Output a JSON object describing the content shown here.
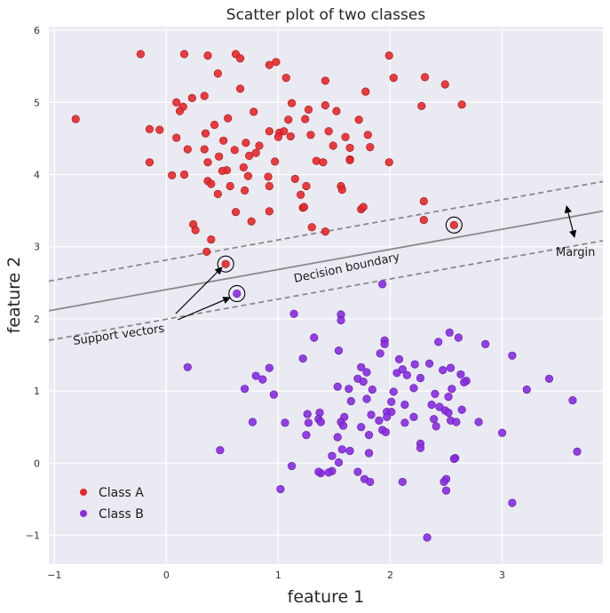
{
  "chart_data": {
    "type": "scatter",
    "title": "Scatter plot of two classes",
    "xlabel": "feature 1",
    "ylabel": "feature 2",
    "xlim": [
      -1.05,
      3.9
    ],
    "ylim": [
      -1.4,
      6.05
    ],
    "xticks": [
      -1,
      0,
      1,
      2,
      3
    ],
    "xtick_labels": [
      "−1",
      "0",
      "1",
      "2",
      "3"
    ],
    "yticks": [
      -1,
      0,
      1,
      2,
      3,
      4,
      5,
      6
    ],
    "ytick_labels": [
      "−1",
      "0",
      "1",
      "2",
      "3",
      "4",
      "5",
      "6"
    ],
    "grid": true,
    "background": "#eaeaf2",
    "legend_position": "bottom-left",
    "series": [
      {
        "name": "Class A",
        "color": "#e8282b",
        "points": [
          [
            -0.23,
            5.67
          ],
          [
            0.16,
            5.67
          ],
          [
            0.37,
            5.65
          ],
          [
            0.62,
            5.67
          ],
          [
            0.66,
            5.61
          ],
          [
            0.92,
            5.52
          ],
          [
            0.98,
            5.56
          ],
          [
            1.99,
            5.65
          ],
          [
            0.46,
            5.4
          ],
          [
            1.07,
            5.34
          ],
          [
            1.42,
            5.3
          ],
          [
            2.03,
            5.34
          ],
          [
            2.31,
            5.35
          ],
          [
            2.49,
            5.25
          ],
          [
            0.66,
            5.19
          ],
          [
            1.78,
            5.15
          ],
          [
            0.34,
            5.09
          ],
          [
            0.23,
            5.06
          ],
          [
            0.09,
            5.0
          ],
          [
            0.15,
            4.94
          ],
          [
            0.12,
            4.88
          ],
          [
            0.78,
            4.87
          ],
          [
            1.12,
            4.99
          ],
          [
            1.27,
            4.9
          ],
          [
            1.42,
            4.96
          ],
          [
            1.52,
            4.88
          ],
          [
            2.28,
            4.95
          ],
          [
            2.64,
            4.97
          ],
          [
            -0.81,
            4.77
          ],
          [
            0.55,
            4.78
          ],
          [
            1.09,
            4.76
          ],
          [
            1.24,
            4.77
          ],
          [
            1.72,
            4.76
          ],
          [
            0.43,
            4.69
          ],
          [
            -0.15,
            4.63
          ],
          [
            -0.06,
            4.62
          ],
          [
            0.35,
            4.57
          ],
          [
            0.92,
            4.6
          ],
          [
            1.01,
            4.58
          ],
          [
            1.05,
            4.6
          ],
          [
            1.45,
            4.6
          ],
          [
            1.6,
            4.52
          ],
          [
            1.8,
            4.55
          ],
          [
            0.09,
            4.51
          ],
          [
            0.34,
            4.35
          ],
          [
            0.51,
            4.47
          ],
          [
            0.71,
            4.44
          ],
          [
            0.83,
            4.4
          ],
          [
            1.0,
            4.52
          ],
          [
            1.11,
            4.53
          ],
          [
            1.29,
            4.55
          ],
          [
            1.49,
            4.4
          ],
          [
            1.64,
            4.37
          ],
          [
            1.82,
            4.38
          ],
          [
            0.19,
            4.35
          ],
          [
            0.61,
            4.34
          ],
          [
            0.74,
            4.26
          ],
          [
            0.8,
            4.3
          ],
          [
            0.47,
            4.25
          ],
          [
            1.64,
            4.21
          ],
          [
            1.64,
            4.2
          ],
          [
            1.99,
            4.17
          ],
          [
            -0.15,
            4.17
          ],
          [
            0.37,
            4.17
          ],
          [
            0.97,
            4.18
          ],
          [
            1.34,
            4.19
          ],
          [
            1.4,
            4.17
          ],
          [
            0.54,
            4.06
          ],
          [
            0.5,
            4.05
          ],
          [
            0.69,
            4.1
          ],
          [
            0.16,
            4.0
          ],
          [
            0.05,
            3.99
          ],
          [
            0.73,
            3.98
          ],
          [
            0.91,
            3.97
          ],
          [
            1.15,
            3.94
          ],
          [
            0.37,
            3.91
          ],
          [
            0.4,
            3.87
          ],
          [
            1.25,
            3.84
          ],
          [
            1.56,
            3.84
          ],
          [
            0.57,
            3.84
          ],
          [
            0.92,
            3.84
          ],
          [
            1.57,
            3.79
          ],
          [
            0.7,
            3.78
          ],
          [
            0.46,
            3.73
          ],
          [
            1.2,
            3.72
          ],
          [
            1.74,
            3.52
          ],
          [
            1.76,
            3.55
          ],
          [
            0.92,
            3.49
          ],
          [
            1.22,
            3.54
          ],
          [
            1.23,
            3.55
          ],
          [
            2.3,
            3.63
          ],
          [
            2.3,
            3.37
          ],
          [
            0.62,
            3.48
          ],
          [
            0.76,
            3.35
          ],
          [
            0.24,
            3.31
          ],
          [
            1.3,
            3.27
          ],
          [
            1.42,
            3.21
          ],
          [
            0.26,
            3.23
          ],
          [
            0.4,
            3.1
          ],
          [
            0.36,
            2.93
          ],
          [
            0.53,
            2.76
          ],
          [
            2.57,
            3.3
          ]
        ]
      },
      {
        "name": "Class B",
        "color": "#8a2be2",
        "points": [
          [
            1.93,
            2.48
          ],
          [
            1.14,
            2.07
          ],
          [
            1.56,
            2.06
          ],
          [
            1.56,
            1.98
          ],
          [
            2.53,
            1.81
          ],
          [
            1.32,
            1.74
          ],
          [
            2.61,
            1.74
          ],
          [
            1.95,
            1.7
          ],
          [
            1.95,
            1.65
          ],
          [
            2.43,
            1.68
          ],
          [
            2.85,
            1.65
          ],
          [
            1.54,
            1.56
          ],
          [
            1.91,
            1.52
          ],
          [
            3.09,
            1.49
          ],
          [
            1.22,
            1.45
          ],
          [
            2.08,
            1.44
          ],
          [
            2.22,
            1.37
          ],
          [
            2.35,
            1.38
          ],
          [
            2.47,
            1.29
          ],
          [
            0.19,
            1.33
          ],
          [
            0.92,
            1.32
          ],
          [
            1.74,
            1.33
          ],
          [
            1.79,
            1.26
          ],
          [
            2.06,
            1.25
          ],
          [
            2.11,
            1.3
          ],
          [
            2.54,
            1.32
          ],
          [
            2.63,
            1.23
          ],
          [
            2.15,
            1.22
          ],
          [
            0.86,
            1.16
          ],
          [
            0.8,
            1.21
          ],
          [
            1.71,
            1.17
          ],
          [
            1.76,
            1.13
          ],
          [
            2.27,
            1.18
          ],
          [
            2.68,
            1.14
          ],
          [
            2.66,
            1.12
          ],
          [
            3.42,
            1.17
          ],
          [
            3.22,
            1.02
          ],
          [
            1.53,
            1.06
          ],
          [
            1.84,
            1.02
          ],
          [
            2.21,
            1.04
          ],
          [
            2.55,
            1.03
          ],
          [
            0.7,
            1.03
          ],
          [
            1.63,
            1.03
          ],
          [
            2.03,
            0.99
          ],
          [
            2.4,
            0.96
          ],
          [
            0.96,
            0.95
          ],
          [
            1.79,
            0.89
          ],
          [
            2.01,
            0.85
          ],
          [
            2.52,
            0.92
          ],
          [
            2.13,
            0.81
          ],
          [
            2.37,
            0.81
          ],
          [
            2.44,
            0.78
          ],
          [
            2.49,
            0.73
          ],
          [
            3.63,
            0.87
          ],
          [
            1.65,
            0.86
          ],
          [
            1.97,
            0.71
          ],
          [
            2.01,
            0.71
          ],
          [
            2.52,
            0.7
          ],
          [
            2.64,
            0.74
          ],
          [
            1.26,
            0.68
          ],
          [
            1.37,
            0.7
          ],
          [
            1.83,
            0.67
          ],
          [
            1.97,
            0.64
          ],
          [
            1.59,
            0.64
          ],
          [
            2.21,
            0.64
          ],
          [
            2.39,
            0.61
          ],
          [
            1.36,
            0.61
          ],
          [
            2.54,
            0.59
          ],
          [
            0.77,
            0.57
          ],
          [
            1.06,
            0.56
          ],
          [
            1.27,
            0.56
          ],
          [
            1.38,
            0.57
          ],
          [
            1.56,
            0.57
          ],
          [
            1.9,
            0.59
          ],
          [
            2.13,
            0.56
          ],
          [
            2.59,
            0.57
          ],
          [
            2.79,
            0.57
          ],
          [
            2.41,
            0.51
          ],
          [
            1.58,
            0.52
          ],
          [
            1.74,
            0.5
          ],
          [
            1.93,
            0.46
          ],
          [
            1.96,
            0.43
          ],
          [
            1.25,
            0.39
          ],
          [
            1.53,
            0.36
          ],
          [
            1.81,
            0.39
          ],
          [
            3.0,
            0.42
          ],
          [
            2.27,
            0.27
          ],
          [
            2.27,
            0.21
          ],
          [
            1.64,
            0.17
          ],
          [
            1.81,
            0.14
          ],
          [
            2.58,
            0.07
          ],
          [
            2.57,
            0.06
          ],
          [
            3.67,
            0.16
          ],
          [
            1.57,
            0.19
          ],
          [
            0.48,
            0.18
          ],
          [
            1.48,
            0.1
          ],
          [
            1.54,
            0.01
          ],
          [
            1.12,
            -0.04
          ],
          [
            1.48,
            -0.11
          ],
          [
            1.45,
            -0.13
          ],
          [
            1.38,
            -0.14
          ],
          [
            1.36,
            -0.12
          ],
          [
            1.71,
            -0.12
          ],
          [
            1.77,
            -0.22
          ],
          [
            1.82,
            -0.26
          ],
          [
            2.11,
            -0.26
          ],
          [
            2.5,
            -0.22
          ],
          [
            2.48,
            -0.26
          ],
          [
            2.5,
            -0.38
          ],
          [
            1.02,
            -0.36
          ],
          [
            3.09,
            -0.55
          ],
          [
            2.33,
            -1.03
          ],
          [
            0.63,
            2.35
          ]
        ]
      }
    ],
    "decision_boundary": {
      "slope": 0.279,
      "intercept": 2.405,
      "margin": 0.41
    },
    "support_vectors": [
      [
        0.53,
        2.76
      ],
      [
        0.63,
        2.35
      ],
      [
        2.57,
        3.3
      ]
    ],
    "annotations": {
      "decision_boundary": "Decision boundary",
      "support_vectors": "Support vectors",
      "margin": "Margin"
    }
  }
}
